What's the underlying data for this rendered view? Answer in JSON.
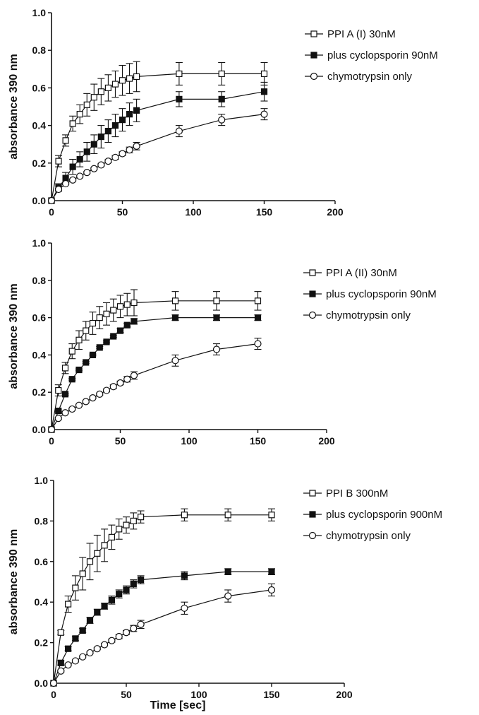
{
  "figure": {
    "xlabel": "Time [sec]",
    "ylabel": "absorbance 390 nm"
  },
  "chart_data": [
    {
      "type": "line",
      "title": "",
      "xlabel": "",
      "ylabel": "absorbance 390 nm",
      "xlim": [
        0,
        200
      ],
      "ylim": [
        0,
        1.0
      ],
      "xticks": [
        "0",
        "50",
        "100",
        "150",
        "200"
      ],
      "yticks": [
        "0.0",
        "0.2",
        "0.4",
        "0.6",
        "0.8",
        "1.0"
      ],
      "grid": false,
      "legend_position": "top-right",
      "series": [
        {
          "name": "PPI A (I) 30nM",
          "marker": "open-square",
          "x": [
            0,
            5,
            10,
            15,
            20,
            25,
            30,
            35,
            40,
            45,
            50,
            55,
            60,
            90,
            120,
            150
          ],
          "y": [
            0,
            0.21,
            0.32,
            0.41,
            0.46,
            0.51,
            0.55,
            0.58,
            0.6,
            0.62,
            0.64,
            0.65,
            0.66,
            0.675,
            0.675,
            0.675
          ],
          "err": [
            0,
            0.03,
            0.03,
            0.04,
            0.05,
            0.06,
            0.07,
            0.07,
            0.07,
            0.07,
            0.08,
            0.08,
            0.08,
            0.06,
            0.06,
            0.06
          ]
        },
        {
          "name": "plus cyclopsporin 90nM",
          "marker": "filled-square",
          "x": [
            0,
            5,
            10,
            15,
            20,
            25,
            30,
            35,
            40,
            45,
            50,
            55,
            60,
            90,
            120,
            150
          ],
          "y": [
            0,
            0.07,
            0.12,
            0.18,
            0.22,
            0.26,
            0.3,
            0.34,
            0.37,
            0.4,
            0.43,
            0.46,
            0.48,
            0.54,
            0.54,
            0.58
          ],
          "err": [
            0,
            0.02,
            0.03,
            0.04,
            0.04,
            0.05,
            0.05,
            0.06,
            0.06,
            0.06,
            0.06,
            0.06,
            0.06,
            0.04,
            0.04,
            0.05
          ]
        },
        {
          "name": "chymotrypsin only",
          "marker": "open-circle",
          "x": [
            0,
            5,
            10,
            15,
            20,
            25,
            30,
            35,
            40,
            45,
            50,
            55,
            60,
            90,
            120,
            150
          ],
          "y": [
            0,
            0.06,
            0.09,
            0.11,
            0.13,
            0.15,
            0.17,
            0.19,
            0.21,
            0.23,
            0.25,
            0.27,
            0.29,
            0.37,
            0.43,
            0.46
          ],
          "err": [
            0,
            0.005,
            0.005,
            0.005,
            0.005,
            0.005,
            0.005,
            0.006,
            0.008,
            0.01,
            0.01,
            0.015,
            0.02,
            0.03,
            0.03,
            0.03
          ]
        }
      ]
    },
    {
      "type": "line",
      "title": "",
      "xlabel": "",
      "ylabel": "absorbance 390 nm",
      "xlim": [
        0,
        200
      ],
      "ylim": [
        0,
        1.0
      ],
      "xticks": [
        "0",
        "50",
        "100",
        "150",
        "200"
      ],
      "yticks": [
        "0.0",
        "0.2",
        "0.4",
        "0.6",
        "0.8",
        "1.0"
      ],
      "grid": false,
      "legend_position": "top-right",
      "series": [
        {
          "name": "PPI A (II) 30nM",
          "marker": "open-square",
          "x": [
            0,
            5,
            10,
            15,
            20,
            25,
            30,
            35,
            40,
            45,
            50,
            55,
            60,
            90,
            120,
            150
          ],
          "y": [
            0,
            0.21,
            0.33,
            0.42,
            0.48,
            0.53,
            0.57,
            0.6,
            0.62,
            0.64,
            0.66,
            0.67,
            0.68,
            0.69,
            0.69,
            0.69
          ],
          "err": [
            0,
            0.03,
            0.03,
            0.04,
            0.05,
            0.05,
            0.06,
            0.06,
            0.06,
            0.06,
            0.06,
            0.06,
            0.07,
            0.05,
            0.05,
            0.05
          ]
        },
        {
          "name": "plus cyclopsporin 90nM",
          "marker": "filled-square",
          "x": [
            0,
            5,
            10,
            15,
            20,
            25,
            30,
            35,
            40,
            45,
            50,
            55,
            60,
            90,
            120,
            150
          ],
          "y": [
            0,
            0.1,
            0.19,
            0.27,
            0.32,
            0.36,
            0.4,
            0.44,
            0.47,
            0.5,
            0.53,
            0.56,
            0.58,
            0.6,
            0.6,
            0.6
          ],
          "err": [
            0,
            0.005,
            0.005,
            0.005,
            0.005,
            0.005,
            0.005,
            0.005,
            0.005,
            0.005,
            0.01,
            0.01,
            0.015,
            0.015,
            0.015,
            0.015
          ]
        },
        {
          "name": "chymotrypsin only",
          "marker": "open-circle",
          "x": [
            0,
            5,
            10,
            15,
            20,
            25,
            30,
            35,
            40,
            45,
            50,
            55,
            60,
            90,
            120,
            150
          ],
          "y": [
            0,
            0.06,
            0.09,
            0.11,
            0.13,
            0.15,
            0.17,
            0.19,
            0.21,
            0.23,
            0.25,
            0.27,
            0.29,
            0.37,
            0.43,
            0.46
          ],
          "err": [
            0,
            0.005,
            0.005,
            0.005,
            0.005,
            0.005,
            0.005,
            0.006,
            0.008,
            0.01,
            0.01,
            0.015,
            0.02,
            0.03,
            0.03,
            0.03
          ]
        }
      ]
    },
    {
      "type": "line",
      "title": "",
      "xlabel": "Time [sec]",
      "ylabel": "absorbance 390 nm",
      "xlim": [
        0,
        200
      ],
      "ylim": [
        0,
        1.0
      ],
      "xticks": [
        "0",
        "50",
        "100",
        "150",
        "200"
      ],
      "yticks": [
        "0.0",
        "0.2",
        "0.4",
        "0.6",
        "0.8",
        "1.0"
      ],
      "grid": false,
      "legend_position": "top-right",
      "series": [
        {
          "name": "PPI B 300nM",
          "marker": "open-square",
          "x": [
            0,
            5,
            10,
            15,
            20,
            25,
            30,
            35,
            40,
            45,
            50,
            55,
            60,
            90,
            120,
            150
          ],
          "y": [
            0,
            0.25,
            0.39,
            0.47,
            0.54,
            0.6,
            0.64,
            0.68,
            0.72,
            0.76,
            0.78,
            0.8,
            0.82,
            0.83,
            0.83,
            0.83
          ],
          "err": [
            0,
            0.01,
            0.04,
            0.06,
            0.08,
            0.09,
            0.09,
            0.08,
            0.06,
            0.05,
            0.04,
            0.04,
            0.03,
            0.03,
            0.03,
            0.03
          ]
        },
        {
          "name": "plus cyclopsporin 900nM",
          "marker": "filled-square",
          "x": [
            0,
            5,
            10,
            15,
            20,
            25,
            30,
            35,
            40,
            45,
            50,
            55,
            60,
            90,
            120,
            150
          ],
          "y": [
            0,
            0.1,
            0.17,
            0.22,
            0.26,
            0.31,
            0.35,
            0.38,
            0.41,
            0.44,
            0.46,
            0.49,
            0.51,
            0.53,
            0.55,
            0.55
          ],
          "err": [
            0,
            0.01,
            0.01,
            0.01,
            0.01,
            0.015,
            0.015,
            0.015,
            0.02,
            0.02,
            0.02,
            0.02,
            0.02,
            0.02,
            0.015,
            0.015
          ]
        },
        {
          "name": "chymotrypsin only",
          "marker": "open-circle",
          "x": [
            0,
            5,
            10,
            15,
            20,
            25,
            30,
            35,
            40,
            45,
            50,
            55,
            60,
            90,
            120,
            150
          ],
          "y": [
            0,
            0.06,
            0.09,
            0.11,
            0.13,
            0.15,
            0.17,
            0.19,
            0.21,
            0.23,
            0.25,
            0.27,
            0.29,
            0.37,
            0.43,
            0.46
          ],
          "err": [
            0,
            0.005,
            0.005,
            0.005,
            0.005,
            0.005,
            0.005,
            0.006,
            0.008,
            0.01,
            0.01,
            0.015,
            0.02,
            0.03,
            0.03,
            0.03
          ]
        }
      ]
    }
  ]
}
